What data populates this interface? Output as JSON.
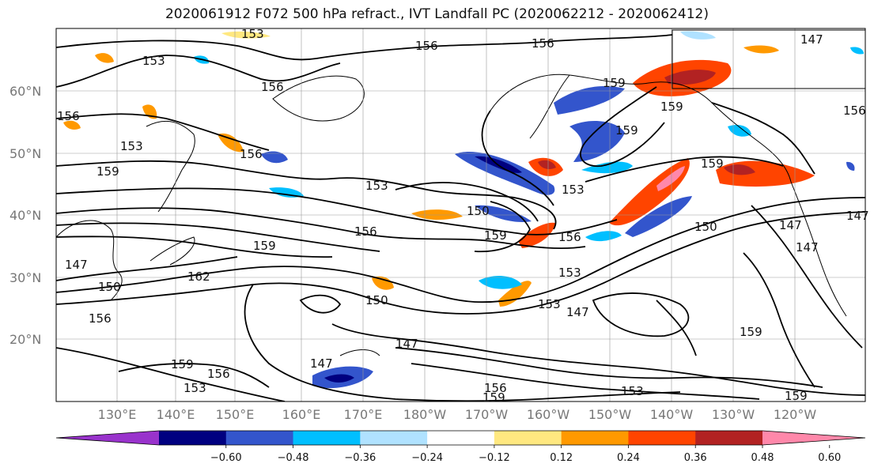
{
  "title": "2020061912 F072 500 hPa refract., IVT Landfall PC (2020062212 - 2020062412)",
  "map": {
    "lon_labels": [
      "130°E",
      "140°E",
      "150°E",
      "160°E",
      "170°E",
      "180°W",
      "170°W",
      "160°W",
      "150°W",
      "140°W",
      "130°W",
      "120°W"
    ],
    "lat_labels": [
      "60°N",
      "50°N",
      "40°N",
      "30°N",
      "20°N"
    ],
    "contour_labels": [
      "153",
      "153",
      "156",
      "156",
      "156",
      "156",
      "159",
      "153",
      "159",
      "156",
      "153",
      "156",
      "159",
      "156",
      "159",
      "159",
      "159",
      "159",
      "162",
      "147",
      "150",
      "156",
      "150",
      "153",
      "153",
      "147",
      "147",
      "147",
      "156",
      "153",
      "159",
      "147",
      "147",
      "153",
      "153",
      "156",
      "159",
      "159",
      "150",
      "150",
      "147",
      "147",
      "156",
      "159"
    ]
  },
  "colorbar": {
    "tick_labels": [
      "−0.60",
      "−0.48",
      "−0.36",
      "−0.24",
      "−0.12",
      "0.12",
      "0.24",
      "0.36",
      "0.48",
      "0.60"
    ],
    "colors": [
      "#9933cc",
      "#000080",
      "#3355cc",
      "#00bfff",
      "#b0e2ff",
      "#ffffff",
      "#ffe880",
      "#ff9900",
      "#ff4400",
      "#b22222",
      "#ff88aa"
    ]
  }
}
